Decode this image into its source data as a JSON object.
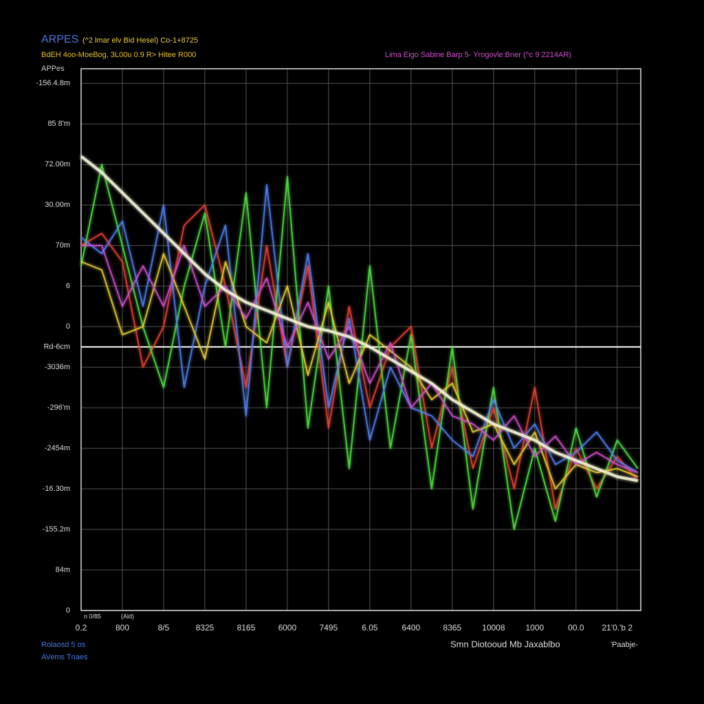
{
  "chart_data": {
    "type": "line",
    "title": "ARPES",
    "subtitle": "(^2 lmar elv Bid Hesel) Co-1+8725",
    "header_left": "BdEH 4oo-MoeBog, 3L00u 0.9 R> Hitee R000",
    "header_right": "Lima Eigo Sabine Barp 5- Yrogovle:Bner (^c 9 2214AR)",
    "y_label": "APPes",
    "x_label": "Smn Diotooud Mb Jaxablbo",
    "x_label_right": "'Paabje-",
    "footnotes": [
      "Rolaosd 5 os",
      "AVems Tnaes"
    ],
    "annotations": [
      "n 0/85",
      "(Ald)"
    ],
    "grid": true,
    "xlim": [
      0,
      13.57
    ],
    "ylim": [
      0,
      13.36
    ],
    "xticks": [
      {
        "value": 0,
        "label": "0.2"
      },
      {
        "value": 1,
        "label": "800"
      },
      {
        "value": 2,
        "label": "8/5"
      },
      {
        "value": 3,
        "label": "8325"
      },
      {
        "value": 4,
        "label": "8165"
      },
      {
        "value": 5,
        "label": "6000"
      },
      {
        "value": 6,
        "label": "7495"
      },
      {
        "value": 7,
        "label": "6.05"
      },
      {
        "value": 8,
        "label": "6400"
      },
      {
        "value": 9,
        "label": "8365"
      },
      {
        "value": 10,
        "label": "10008"
      },
      {
        "value": 11,
        "label": "1000"
      },
      {
        "value": 12,
        "label": "00.0"
      },
      {
        "value": 13,
        "label": "21'0.'b 2"
      }
    ],
    "yticks": [
      {
        "value": 13,
        "label": "-156.4.8m"
      },
      {
        "value": 12,
        "label": "85 8'm"
      },
      {
        "value": 11,
        "label": "72.00m"
      },
      {
        "value": 10,
        "label": "30.00m"
      },
      {
        "value": 9,
        "label": "70m"
      },
      {
        "value": 8,
        "label": "6"
      },
      {
        "value": 7,
        "label": "0"
      },
      {
        "value": 6.5,
        "label": "Rd-6cm"
      },
      {
        "value": 6,
        "label": "-3036m"
      },
      {
        "value": 5,
        "label": "-296'm"
      },
      {
        "value": 4,
        "label": "-2454m"
      },
      {
        "value": 3,
        "label": "-16.30m"
      },
      {
        "value": 2,
        "label": "-155.2m"
      },
      {
        "value": 1,
        "label": "84m"
      },
      0
    ],
    "hlines": [
      {
        "value": 6.5,
        "color": "#ffffff"
      }
    ],
    "x": [
      0,
      0.5,
      1,
      1.5,
      2,
      2.5,
      3,
      3.5,
      4,
      4.5,
      5,
      5.5,
      6,
      6.5,
      7,
      7.5,
      8,
      8.5,
      9,
      9.5,
      10,
      10.5,
      11,
      11.5,
      12,
      12.5,
      13,
      13.5
    ],
    "series": [
      {
        "color": "#e84030",
        "values": [
          9.0,
          9.3,
          8.6,
          6.0,
          7.0,
          9.5,
          10.0,
          8.0,
          5.5,
          9.0,
          6.0,
          8.5,
          4.5,
          7.5,
          5.0,
          6.5,
          7.0,
          4.0,
          6.0,
          3.5,
          5.0,
          3.0,
          5.5,
          2.5,
          4.0,
          3.0,
          3.8,
          3.2
        ]
      },
      {
        "color": "#50e040",
        "values": [
          8.5,
          11.0,
          9.0,
          7.0,
          5.5,
          8.0,
          9.8,
          6.5,
          10.3,
          5.0,
          10.7,
          4.5,
          8.0,
          3.5,
          8.5,
          4.0,
          6.8,
          3.0,
          6.5,
          2.5,
          5.5,
          2.0,
          4.0,
          2.2,
          4.5,
          2.8,
          4.2,
          3.5
        ]
      },
      {
        "color": "#5080f0",
        "values": [
          9.2,
          8.8,
          9.6,
          7.5,
          10.0,
          5.5,
          8.0,
          9.5,
          4.8,
          10.5,
          6.0,
          8.8,
          5.0,
          7.2,
          4.2,
          6.0,
          5.0,
          4.8,
          4.2,
          3.8,
          5.2,
          4.0,
          4.6,
          3.6,
          3.9,
          4.4,
          3.7,
          3.4
        ]
      },
      {
        "color": "#e8d030",
        "values": [
          8.6,
          8.4,
          6.8,
          7.0,
          8.8,
          7.5,
          6.2,
          8.6,
          7.0,
          6.6,
          8.0,
          5.8,
          7.6,
          5.6,
          6.8,
          6.4,
          6.0,
          5.2,
          5.6,
          4.4,
          4.6,
          3.6,
          4.4,
          3.0,
          3.6,
          3.4,
          3.5,
          3.3
        ]
      },
      {
        "color": "#d050d0",
        "values": [
          9.0,
          9.0,
          7.5,
          8.5,
          7.5,
          9.0,
          7.5,
          8.0,
          7.2,
          8.2,
          6.5,
          7.6,
          6.2,
          7.0,
          5.6,
          6.6,
          5.0,
          5.6,
          4.8,
          4.6,
          4.2,
          4.8,
          3.8,
          4.3,
          3.6,
          3.9,
          3.6,
          3.4
        ]
      },
      {
        "color": "#f4f4d8",
        "values": [
          11.2,
          10.8,
          10.3,
          9.8,
          9.3,
          8.8,
          8.3,
          7.9,
          7.6,
          7.4,
          7.2,
          7.0,
          6.9,
          6.75,
          6.5,
          6.2,
          5.9,
          5.6,
          5.2,
          4.9,
          4.6,
          4.4,
          4.2,
          3.9,
          3.7,
          3.5,
          3.3,
          3.2
        ]
      }
    ]
  }
}
